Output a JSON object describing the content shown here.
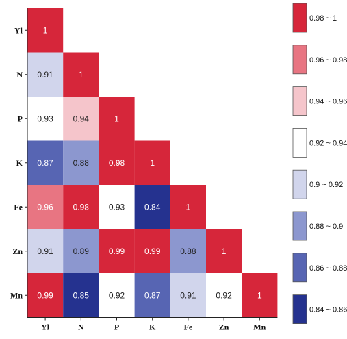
{
  "chart_data": {
    "type": "heatmap",
    "variables": [
      "Yl",
      "N",
      "P",
      "K",
      "Fe",
      "Zn",
      "Mn"
    ],
    "matrix": [
      [
        1
      ],
      [
        0.91,
        1
      ],
      [
        0.93,
        0.94,
        1
      ],
      [
        0.87,
        0.88,
        0.98,
        1
      ],
      [
        0.96,
        0.98,
        0.93,
        0.84,
        1
      ],
      [
        0.91,
        0.89,
        0.99,
        0.99,
        0.88,
        1
      ],
      [
        0.99,
        0.85,
        0.92,
        0.87,
        0.91,
        0.92,
        1
      ]
    ],
    "legend": [
      {
        "label": "0.98 ~ 1",
        "color": "#d6263a"
      },
      {
        "label": "0.96 ~ 0.98",
        "color": "#e87582"
      },
      {
        "label": "0.94 ~ 0.96",
        "color": "#f5c5cb"
      },
      {
        "label": "0.92 ~ 0.94",
        "color": "#ffffff"
      },
      {
        "label": "0.9  ~ 0.92",
        "color": "#d1d5ec"
      },
      {
        "label": "0.88 ~ 0.9",
        "color": "#8c97cf"
      },
      {
        "label": "0.86 ~ 0.88",
        "color": "#5765b3"
      },
      {
        "label": "0.84 ~ 0.86",
        "color": "#25328f"
      }
    ],
    "legend_position": "right"
  }
}
